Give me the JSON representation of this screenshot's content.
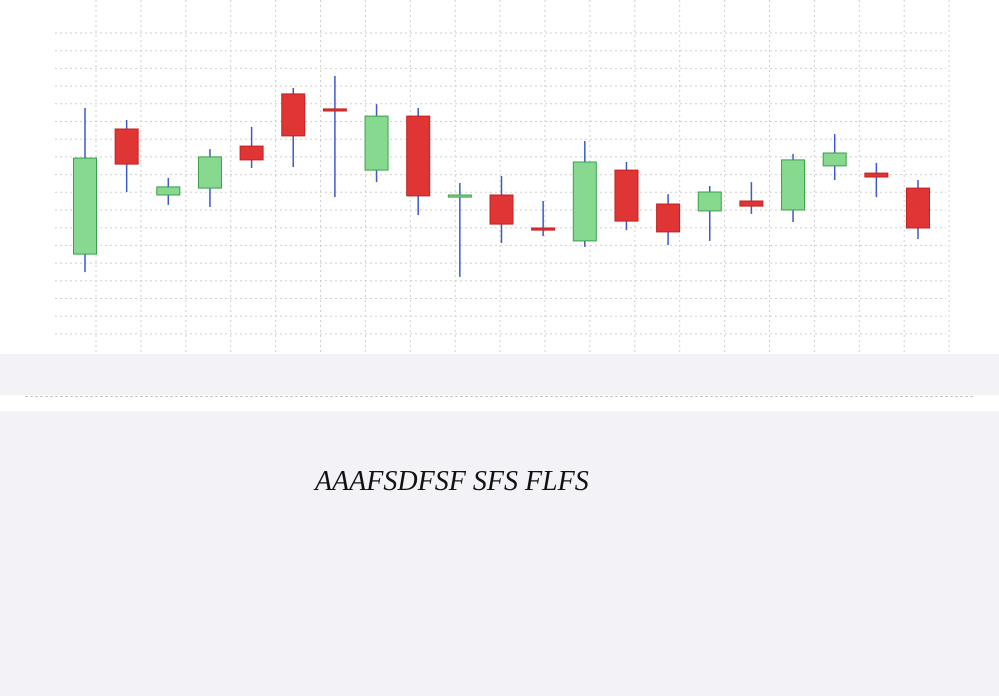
{
  "chart_data": {
    "type": "candlestick",
    "ylim": [
      0,
      100
    ],
    "up_color": "#86d98f",
    "up_edge": "#3aa048",
    "down_color": "#e03535",
    "down_edge": "#c42020",
    "wick_color": "#3a5bc8",
    "open": [
      25.3,
      67,
      45,
      47.3,
      61.3,
      78.7,
      73.7,
      53.3,
      71.3,
      44.3,
      45,
      34,
      29.7,
      53.3,
      42,
      39.7,
      43,
      40,
      54.7,
      52.3,
      47.3
    ],
    "high": [
      74,
      70,
      50.7,
      60.3,
      67.7,
      80.7,
      84.7,
      75.3,
      74,
      49,
      51.3,
      43,
      63,
      56,
      45.3,
      48,
      49.3,
      58.7,
      65.3,
      55.7,
      50
    ],
    "low": [
      19.3,
      46,
      41.7,
      41,
      54,
      54.3,
      44.3,
      49.3,
      38.3,
      17.7,
      29,
      31.3,
      27.7,
      33.3,
      28.3,
      29.7,
      38.7,
      36,
      50,
      44.3,
      30.3
    ],
    "close": [
      57.3,
      55.3,
      47.7,
      57.7,
      56.7,
      64.7,
      73,
      71.3,
      44.7,
      45,
      35.3,
      33.3,
      56,
      36.3,
      32.7,
      46,
      41.3,
      56.7,
      59,
      51,
      34
    ]
  },
  "caption": "AAAFSDFSF SFS FLFS"
}
